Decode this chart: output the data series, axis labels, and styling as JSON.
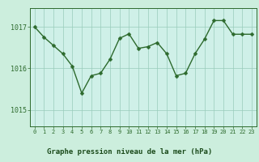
{
  "x": [
    0,
    1,
    2,
    3,
    4,
    5,
    6,
    7,
    8,
    9,
    10,
    11,
    12,
    13,
    14,
    15,
    16,
    17,
    18,
    19,
    20,
    21,
    22,
    23
  ],
  "y": [
    1017.0,
    1016.75,
    1016.55,
    1016.35,
    1016.05,
    1015.4,
    1015.82,
    1015.88,
    1016.22,
    1016.72,
    1016.83,
    1016.48,
    1016.52,
    1016.62,
    1016.35,
    1015.82,
    1015.88,
    1016.35,
    1016.7,
    1017.15,
    1017.15,
    1016.82,
    1016.82,
    1016.82
  ],
  "line_color": "#2d6a2d",
  "marker_color": "#2d6a2d",
  "bg_color": "#cceedd",
  "plot_bg_color": "#cff0e8",
  "label_bg_color": "#88bb88",
  "grid_color": "#99ccbb",
  "xlabel": "Graphe pression niveau de la mer (hPa)",
  "xlabel_color": "#1a4a1a",
  "tick_color": "#2d6a2d",
  "yticks": [
    1015,
    1016,
    1017
  ],
  "ylim": [
    1014.6,
    1017.45
  ],
  "xlim": [
    -0.5,
    23.5
  ],
  "marker_size": 2.5,
  "line_width": 1.0
}
